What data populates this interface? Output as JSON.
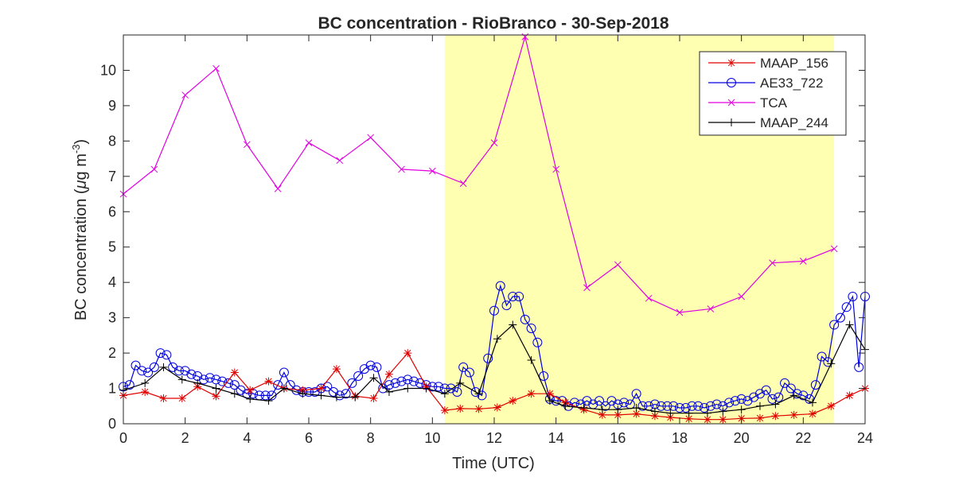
{
  "chart_data": {
    "type": "line",
    "title": "BC concentration  - RioBranco - 30-Sep-2018",
    "xlabel": "Time (UTC)",
    "ylabel_prefix": "BC concentration (",
    "ylabel_mu": "μ",
    "ylabel_unit": "g m",
    "ylabel_exp": "-3",
    "ylabel_suffix": ")",
    "xlim": [
      0,
      24
    ],
    "ylim": [
      0,
      11
    ],
    "xticks": [
      "0",
      "2",
      "4",
      "6",
      "8",
      "10",
      "12",
      "14",
      "16",
      "18",
      "20",
      "22",
      "24"
    ],
    "yticks": [
      "0",
      "1",
      "2",
      "3",
      "4",
      "5",
      "6",
      "7",
      "8",
      "9",
      "10"
    ],
    "grid": false,
    "legend_position": "top-right",
    "highlight_region": {
      "x_start": 10.4,
      "x_end": 23.0,
      "color": "#ffffb2"
    },
    "series": [
      {
        "name": "MAAP_156",
        "color": "#e00000",
        "marker": "asterisk",
        "x": [
          0,
          0.7,
          1.3,
          1.9,
          2.4,
          3.0,
          3.6,
          4.1,
          4.7,
          5.2,
          5.8,
          6.4,
          6.9,
          7.5,
          8.1,
          8.6,
          9.2,
          9.8,
          10.4,
          10.9,
          11.5,
          12.1,
          12.6,
          13.2,
          13.8,
          14.3,
          14.9,
          15.5,
          16.0,
          16.6,
          17.2,
          17.7,
          18.3,
          18.9,
          19.4,
          20.0,
          20.6,
          21.1,
          21.7,
          22.3,
          22.9,
          23.5,
          24.0
        ],
        "y": [
          0.8,
          0.9,
          0.72,
          0.72,
          1.05,
          0.78,
          1.45,
          0.95,
          1.2,
          1.0,
          0.95,
          1.0,
          1.55,
          0.78,
          0.72,
          1.4,
          2.0,
          1.05,
          0.38,
          0.43,
          0.42,
          0.46,
          0.65,
          0.85,
          0.85,
          0.6,
          0.4,
          0.25,
          0.25,
          0.28,
          0.22,
          0.18,
          0.14,
          0.12,
          0.12,
          0.15,
          0.16,
          0.22,
          0.25,
          0.28,
          0.5,
          0.8,
          1.0
        ]
      },
      {
        "name": "AE33_722",
        "color": "#0000e0",
        "marker": "circle",
        "x": [
          0,
          0.2,
          0.4,
          0.6,
          0.8,
          1.0,
          1.2,
          1.4,
          1.6,
          1.8,
          2.0,
          2.2,
          2.4,
          2.6,
          2.8,
          3.0,
          3.2,
          3.4,
          3.6,
          3.8,
          4.0,
          4.2,
          4.4,
          4.6,
          4.8,
          5.0,
          5.2,
          5.4,
          5.6,
          5.8,
          6.0,
          6.2,
          6.4,
          6.6,
          6.8,
          7.0,
          7.2,
          7.4,
          7.6,
          7.8,
          8.0,
          8.2,
          8.4,
          8.6,
          8.8,
          9.0,
          9.2,
          9.4,
          9.6,
          9.8,
          10.0,
          10.2,
          10.4,
          10.6,
          10.8,
          11.0,
          11.2,
          11.4,
          11.6,
          11.8,
          12.0,
          12.2,
          12.4,
          12.6,
          12.8,
          13.0,
          13.2,
          13.4,
          13.6,
          13.8,
          14.0,
          14.2,
          14.4,
          14.6,
          14.8,
          15.0,
          15.2,
          15.4,
          15.6,
          15.8,
          16.0,
          16.2,
          16.4,
          16.6,
          16.8,
          17.0,
          17.2,
          17.4,
          17.6,
          17.8,
          18.0,
          18.2,
          18.4,
          18.6,
          18.8,
          19.0,
          19.2,
          19.4,
          19.6,
          19.8,
          20.0,
          20.2,
          20.4,
          20.6,
          20.8,
          21.0,
          21.2,
          21.4,
          21.6,
          21.8,
          22.0,
          22.2,
          22.4,
          22.6,
          22.8,
          23.0,
          23.2,
          23.4,
          23.6,
          23.8,
          24.0
        ],
        "y": [
          1.05,
          1.1,
          1.65,
          1.5,
          1.45,
          1.6,
          2.0,
          1.95,
          1.6,
          1.5,
          1.5,
          1.4,
          1.35,
          1.25,
          1.3,
          1.25,
          1.2,
          1.15,
          1.1,
          0.95,
          0.85,
          0.85,
          0.8,
          0.8,
          0.8,
          1.1,
          1.45,
          1.1,
          0.95,
          0.9,
          0.9,
          0.9,
          1.0,
          1.05,
          0.9,
          0.8,
          0.85,
          1.15,
          1.35,
          1.55,
          1.65,
          1.6,
          1.0,
          1.1,
          1.15,
          1.2,
          1.25,
          1.2,
          1.15,
          1.1,
          1.05,
          1.05,
          1.0,
          1.0,
          0.9,
          1.6,
          1.45,
          0.9,
          0.8,
          1.85,
          3.2,
          3.9,
          3.35,
          3.6,
          3.6,
          2.95,
          2.7,
          2.3,
          1.35,
          0.7,
          0.65,
          0.65,
          0.5,
          0.6,
          0.55,
          0.65,
          0.55,
          0.65,
          0.5,
          0.65,
          0.55,
          0.6,
          0.55,
          0.85,
          0.5,
          0.5,
          0.55,
          0.5,
          0.5,
          0.5,
          0.45,
          0.45,
          0.5,
          0.5,
          0.45,
          0.5,
          0.55,
          0.5,
          0.6,
          0.65,
          0.7,
          0.65,
          0.75,
          0.85,
          0.95,
          0.7,
          0.75,
          1.15,
          1.0,
          0.85,
          0.8,
          0.7,
          1.1,
          1.9,
          1.75,
          2.8,
          3.0,
          3.3,
          3.6,
          1.6,
          3.6
        ]
      },
      {
        "name": "TCA",
        "color": "#e000e0",
        "marker": "x",
        "x": [
          0,
          1.0,
          2.0,
          3.0,
          4.0,
          5.0,
          6.0,
          7.0,
          8.0,
          9.0,
          10.0,
          11.0,
          12.0,
          13.0,
          14.0,
          15.0,
          16.0,
          17.0,
          18.0,
          19.0,
          20.0,
          21.0,
          22.0,
          23.0
        ],
        "y": [
          6.5,
          7.2,
          9.3,
          10.05,
          7.9,
          6.65,
          7.95,
          7.45,
          8.1,
          7.2,
          7.15,
          6.8,
          7.95,
          10.95,
          7.2,
          3.85,
          4.5,
          3.55,
          3.15,
          3.25,
          3.6,
          4.55,
          4.6,
          4.95
        ]
      },
      {
        "name": "MAAP_244",
        "color": "#000000",
        "marker": "plus",
        "x": [
          0,
          0.7,
          1.3,
          1.9,
          2.4,
          3.0,
          3.6,
          4.1,
          4.7,
          5.2,
          5.8,
          6.4,
          6.9,
          7.5,
          8.1,
          8.6,
          9.2,
          9.8,
          10.4,
          10.9,
          11.5,
          12.1,
          12.6,
          13.2,
          13.8,
          14.3,
          14.9,
          15.5,
          16.0,
          16.6,
          17.2,
          17.7,
          18.3,
          18.9,
          19.4,
          20.0,
          20.6,
          21.1,
          21.7,
          22.3,
          22.9,
          23.5,
          24.0
        ],
        "y": [
          0.95,
          1.15,
          1.6,
          1.25,
          1.15,
          1.0,
          0.85,
          0.7,
          0.65,
          1.0,
          0.85,
          0.8,
          0.75,
          0.75,
          1.3,
          0.9,
          1.0,
          1.0,
          0.85,
          1.15,
          0.85,
          2.4,
          2.8,
          1.8,
          0.65,
          0.5,
          0.45,
          0.4,
          0.4,
          0.45,
          0.35,
          0.3,
          0.3,
          0.3,
          0.35,
          0.4,
          0.5,
          0.55,
          0.8,
          0.6,
          1.7,
          2.8,
          2.1
        ]
      }
    ]
  }
}
